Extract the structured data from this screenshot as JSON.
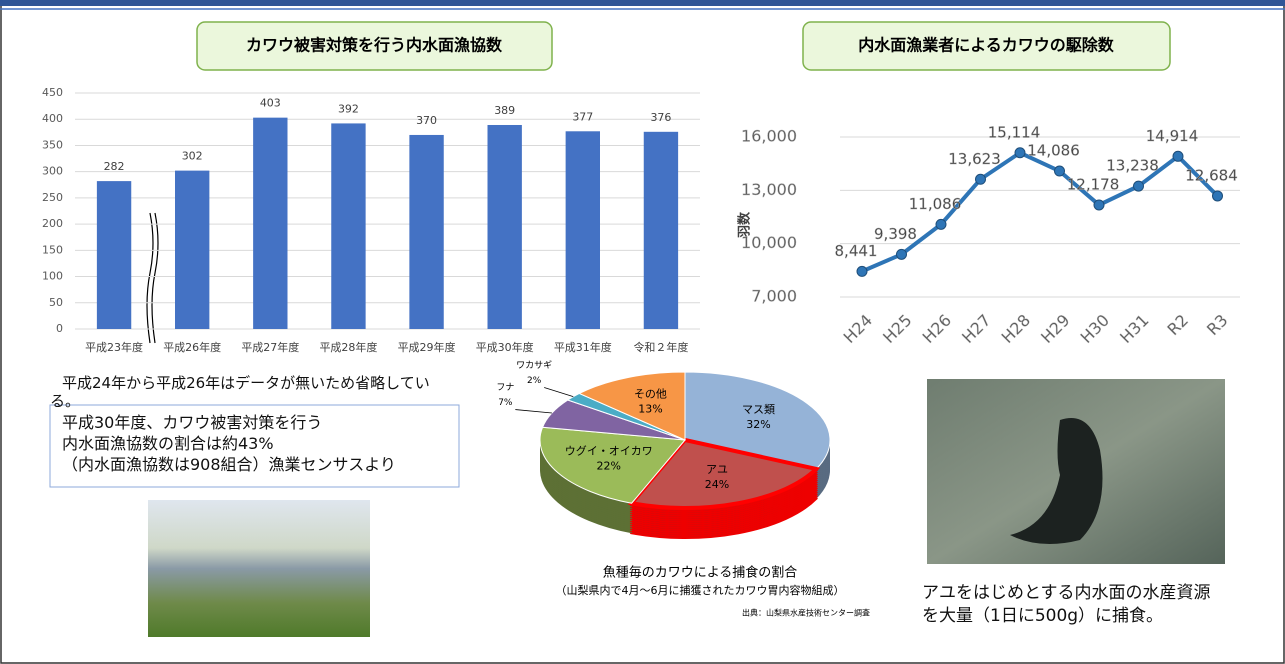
{
  "chart_data": [
    {
      "type": "bar",
      "title": "カワウ被害対策を行う内水面漁協数",
      "categories": [
        "平成23年度",
        "平成26年度",
        "平成27年度",
        "平成28年度",
        "平成29年度",
        "平成30年度",
        "平成31年度",
        "令和２年度"
      ],
      "values": [
        282,
        302,
        403,
        392,
        370,
        389,
        377,
        376
      ],
      "color": "#4472c4",
      "ylim": [
        0,
        450
      ],
      "yticks": [
        0,
        50,
        100,
        150,
        200,
        250,
        300,
        350,
        400,
        450
      ],
      "grid": true
    },
    {
      "type": "line",
      "title": "内水面漁業者によるカワウの駆除数",
      "y_label": "羽数",
      "categories": [
        "H24",
        "H25",
        "H26",
        "H27",
        "H28",
        "H29",
        "H30",
        "H31",
        "R2",
        "R3"
      ],
      "values": [
        8441,
        9398,
        11086,
        13623,
        15114,
        14086,
        12178,
        13238,
        14914,
        12684
      ],
      "value_labels": [
        "8,441",
        "9,398",
        "11,086",
        "13,623",
        "15,114",
        "14,086",
        "12,178",
        "13,238",
        "14,914",
        "12,684"
      ],
      "color": "#2e75b6",
      "ylim": [
        7000,
        16000
      ],
      "yticks": [
        {
          "value": 7000,
          "label": "7,000"
        },
        {
          "value": 10000,
          "label": "10,000"
        },
        {
          "value": 13000,
          "label": "13,000"
        },
        {
          "value": 16000,
          "label": "16,000"
        }
      ],
      "grid": true
    },
    {
      "type": "pie",
      "title": "魚種毎のカワウによる捕食の割合",
      "subtitle": "（山梨県内で4月～6月に捕獲されたカワウ胃内容物組成）",
      "source": "出典：山梨県水産技術センター調査",
      "categories": [
        "マス類",
        "アユ",
        "ウグイ・オイカワ",
        "フナ",
        "ワカサギ",
        "その他"
      ],
      "values": [
        32,
        24,
        22,
        7,
        2,
        13
      ],
      "value_labels": [
        "32%",
        "24%",
        "22%",
        "7%",
        "2%",
        "13%"
      ],
      "colors": [
        "#95b3d7",
        "#c0504d",
        "#9bbb59",
        "#8064a2",
        "#4bacc6",
        "#f79646"
      ]
    }
  ],
  "notes": {
    "omission": "平成24年から平成26年はデータが無いため省略している。",
    "box": [
      "平成30年度、カワウ被害対策を行う",
      "内水面漁協数の割合は約43%",
      "（内水面漁協数は908組合）漁業センサスより"
    ],
    "photo_caption": "アユをはじめとする内水面の水産資源を大量（1日に500g）に捕食。"
  }
}
